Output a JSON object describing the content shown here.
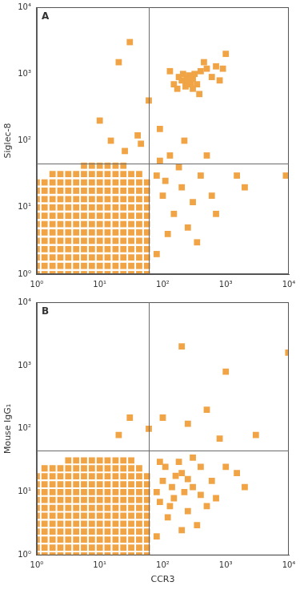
{
  "chart_data": [
    {
      "type": "scatter",
      "title": "A",
      "y_label": "Siglec-8",
      "color": "#f0a445",
      "marker": "square",
      "log": true,
      "grid": false,
      "xlim": [
        1,
        10000
      ],
      "ylim": [
        1,
        10000
      ],
      "xticks": [
        {
          "value": 1,
          "label": "10⁰"
        },
        {
          "value": 10,
          "label": "10¹"
        },
        {
          "value": 100,
          "label": "10²"
        },
        {
          "value": 1000,
          "label": "10³"
        },
        {
          "value": 10000,
          "label": "10⁴"
        }
      ],
      "yticks": [
        {
          "value": 1,
          "label": "10⁰"
        },
        {
          "value": 10,
          "label": "10¹"
        },
        {
          "value": 100,
          "label": "10²"
        },
        {
          "value": 1000,
          "label": "10³"
        },
        {
          "value": 10000,
          "label": "10⁴"
        }
      ],
      "quadrant": {
        "x": 60,
        "y": 45
      },
      "x": [
        5.62,
        7.5,
        10,
        13.3,
        17.8,
        23.7,
        1.78,
        2.37,
        3.16,
        4.22,
        5.62,
        7.5,
        10,
        13.3,
        17.8,
        23.7,
        31.6,
        42.2,
        1,
        1.33,
        1.78,
        2.37,
        3.16,
        4.22,
        5.62,
        7.5,
        10,
        13.3,
        17.8,
        23.7,
        31.6,
        42.2,
        56.2,
        1,
        1.33,
        1.78,
        2.37,
        3.16,
        4.22,
        5.62,
        7.5,
        10,
        13.3,
        17.8,
        23.7,
        31.6,
        42.2,
        56.2,
        1,
        1.33,
        1.78,
        2.37,
        3.16,
        4.22,
        5.62,
        7.5,
        10,
        13.3,
        17.8,
        23.7,
        31.6,
        42.2,
        56.2,
        1,
        1.33,
        1.78,
        2.37,
        3.16,
        4.22,
        5.62,
        7.5,
        10,
        13.3,
        17.8,
        23.7,
        31.6,
        42.2,
        56.2,
        1,
        1.33,
        1.78,
        2.37,
        3.16,
        4.22,
        5.62,
        7.5,
        10,
        13.3,
        17.8,
        23.7,
        31.6,
        42.2,
        56.2,
        1,
        1.33,
        1.78,
        2.37,
        3.16,
        4.22,
        5.62,
        7.5,
        10,
        13.3,
        17.8,
        23.7,
        31.6,
        42.2,
        56.2,
        1,
        1.33,
        1.78,
        2.37,
        3.16,
        4.22,
        5.62,
        7.5,
        10,
        13.3,
        17.8,
        23.7,
        31.6,
        42.2,
        56.2,
        1,
        1.33,
        1.78,
        2.37,
        3.16,
        4.22,
        5.62,
        7.5,
        10,
        13.3,
        17.8,
        23.7,
        31.6,
        42.2,
        56.2,
        1,
        1.33,
        1.78,
        2.37,
        3.16,
        4.22,
        5.62,
        7.5,
        10,
        13.3,
        17.8,
        23.7,
        31.6,
        42.2,
        56.2,
        1,
        1.33,
        1.78,
        2.37,
        3.16,
        4.22,
        5.62,
        7.5,
        10,
        13.3,
        17.8,
        23.7,
        31.6,
        42.2,
        56.2,
        1,
        1.33,
        1.78,
        2.37,
        3.16,
        4.22,
        5.62,
        7.5,
        10,
        13.3,
        17.8,
        23.7,
        31.6,
        42.2,
        56.2,
        1,
        1.33,
        1.78,
        2.37,
        3.16,
        4.22,
        5.62,
        7.5,
        10,
        13.3,
        17.8,
        23.7,
        31.6,
        42.2,
        56.2,
        200,
        250,
        300,
        230,
        280,
        180,
        320,
        260,
        350,
        210,
        400,
        150,
        300,
        240,
        500,
        700,
        900,
        600,
        450,
        1000,
        130,
        170,
        800,
        380,
        80,
        100,
        150,
        200,
        300,
        120,
        90,
        400,
        250,
        600,
        110,
        180,
        700,
        1500,
        350,
        130,
        220,
        90,
        500,
        2000,
        80,
        20,
        30,
        10,
        40,
        45,
        25,
        60,
        15,
        9000
      ],
      "values": [
        42.2,
        42.2,
        42.2,
        42.2,
        42.2,
        42.2,
        31.6,
        31.6,
        31.6,
        31.6,
        31.6,
        31.6,
        31.6,
        31.6,
        31.6,
        31.6,
        31.6,
        31.6,
        23.7,
        23.7,
        23.7,
        23.7,
        23.7,
        23.7,
        23.7,
        23.7,
        23.7,
        23.7,
        23.7,
        23.7,
        23.7,
        23.7,
        23.7,
        17.8,
        17.8,
        17.8,
        17.8,
        17.8,
        17.8,
        17.8,
        17.8,
        17.8,
        17.8,
        17.8,
        17.8,
        17.8,
        17.8,
        17.8,
        13.3,
        13.3,
        13.3,
        13.3,
        13.3,
        13.3,
        13.3,
        13.3,
        13.3,
        13.3,
        13.3,
        13.3,
        13.3,
        13.3,
        13.3,
        10,
        10,
        10,
        10,
        10,
        10,
        10,
        10,
        10,
        10,
        10,
        10,
        10,
        10,
        10,
        7.5,
        7.5,
        7.5,
        7.5,
        7.5,
        7.5,
        7.5,
        7.5,
        7.5,
        7.5,
        7.5,
        7.5,
        7.5,
        7.5,
        7.5,
        5.62,
        5.62,
        5.62,
        5.62,
        5.62,
        5.62,
        5.62,
        5.62,
        5.62,
        5.62,
        5.62,
        5.62,
        5.62,
        5.62,
        5.62,
        4.22,
        4.22,
        4.22,
        4.22,
        4.22,
        4.22,
        4.22,
        4.22,
        4.22,
        4.22,
        4.22,
        4.22,
        4.22,
        4.22,
        4.22,
        3.16,
        3.16,
        3.16,
        3.16,
        3.16,
        3.16,
        3.16,
        3.16,
        3.16,
        3.16,
        3.16,
        3.16,
        3.16,
        3.16,
        3.16,
        2.37,
        2.37,
        2.37,
        2.37,
        2.37,
        2.37,
        2.37,
        2.37,
        2.37,
        2.37,
        2.37,
        2.37,
        2.37,
        2.37,
        2.37,
        1.78,
        1.78,
        1.78,
        1.78,
        1.78,
        1.78,
        1.78,
        1.78,
        1.78,
        1.78,
        1.78,
        1.78,
        1.78,
        1.78,
        1.78,
        1.33,
        1.33,
        1.33,
        1.33,
        1.33,
        1.33,
        1.33,
        1.33,
        1.33,
        1.33,
        1.33,
        1.33,
        1.33,
        1.33,
        1.33,
        1,
        1,
        1,
        1,
        1,
        1,
        1,
        1,
        1,
        1,
        1,
        1,
        1,
        1,
        1,
        800,
        750,
        850,
        650,
        700,
        900,
        1000,
        950,
        700,
        1000,
        1100,
        700,
        600,
        850,
        1200,
        1300,
        1200,
        900,
        1500,
        2000,
        1100,
        600,
        800,
        500,
        30,
        15,
        8,
        20,
        12,
        4,
        50,
        30,
        5,
        15,
        25,
        40,
        8,
        30,
        3,
        60,
        100,
        150,
        60,
        20,
        2,
        1500,
        3000,
        200,
        120,
        90,
        70,
        400,
        100,
        30
      ]
    },
    {
      "type": "scatter",
      "title": "B",
      "x_label": "CCR3",
      "y_label": "Mouse IgG₁",
      "color": "#f0a445",
      "marker": "square",
      "log": true,
      "grid": false,
      "xlim": [
        1,
        10000
      ],
      "ylim": [
        1,
        10000
      ],
      "xticks": [
        {
          "value": 1,
          "label": "10⁰"
        },
        {
          "value": 10,
          "label": "10¹"
        },
        {
          "value": 100,
          "label": "10²"
        },
        {
          "value": 1000,
          "label": "10³"
        },
        {
          "value": 10000,
          "label": "10⁴"
        }
      ],
      "yticks": [
        {
          "value": 1,
          "label": "10⁰"
        },
        {
          "value": 10,
          "label": "10¹"
        },
        {
          "value": 100,
          "label": "10²"
        },
        {
          "value": 1000,
          "label": "10³"
        },
        {
          "value": 10000,
          "label": "10⁴"
        }
      ],
      "quadrant": {
        "x": 60,
        "y": 45
      },
      "x": [
        3.16,
        4.22,
        5.62,
        7.5,
        10,
        13.3,
        17.8,
        23.7,
        31.6,
        1.33,
        1.78,
        2.37,
        3.16,
        4.22,
        5.62,
        7.5,
        10,
        13.3,
        17.8,
        23.7,
        31.6,
        42.2,
        1,
        1.33,
        1.78,
        2.37,
        3.16,
        4.22,
        5.62,
        7.5,
        10,
        13.3,
        17.8,
        23.7,
        31.6,
        42.2,
        56.2,
        1,
        1.33,
        1.78,
        2.37,
        3.16,
        4.22,
        5.62,
        7.5,
        10,
        13.3,
        17.8,
        23.7,
        31.6,
        42.2,
        56.2,
        1,
        1.33,
        1.78,
        2.37,
        3.16,
        4.22,
        5.62,
        7.5,
        10,
        13.3,
        17.8,
        23.7,
        31.6,
        42.2,
        56.2,
        1,
        1.33,
        1.78,
        2.37,
        3.16,
        4.22,
        5.62,
        7.5,
        10,
        13.3,
        17.8,
        23.7,
        31.6,
        42.2,
        56.2,
        1,
        1.33,
        1.78,
        2.37,
        3.16,
        4.22,
        5.62,
        7.5,
        10,
        13.3,
        17.8,
        23.7,
        31.6,
        42.2,
        56.2,
        1,
        1.33,
        1.78,
        2.37,
        3.16,
        4.22,
        5.62,
        7.5,
        10,
        13.3,
        17.8,
        23.7,
        31.6,
        42.2,
        56.2,
        1,
        1.33,
        1.78,
        2.37,
        3.16,
        4.22,
        5.62,
        7.5,
        10,
        13.3,
        17.8,
        23.7,
        31.6,
        42.2,
        56.2,
        1,
        1.33,
        1.78,
        2.37,
        3.16,
        4.22,
        5.62,
        7.5,
        10,
        13.3,
        17.8,
        23.7,
        31.6,
        42.2,
        56.2,
        1,
        1.33,
        1.78,
        2.37,
        3.16,
        4.22,
        5.62,
        7.5,
        10,
        13.3,
        17.8,
        23.7,
        31.6,
        42.2,
        56.2,
        1,
        1.33,
        1.78,
        2.37,
        3.16,
        4.22,
        5.62,
        7.5,
        10,
        13.3,
        17.8,
        23.7,
        31.6,
        42.2,
        56.2,
        1,
        1.33,
        1.78,
        2.37,
        3.16,
        4.22,
        5.62,
        7.5,
        10,
        13.3,
        17.8,
        23.7,
        31.6,
        42.2,
        56.2,
        80,
        100,
        150,
        200,
        300,
        120,
        90,
        400,
        250,
        600,
        110,
        180,
        700,
        1500,
        350,
        130,
        220,
        160,
        500,
        2000,
        80,
        300,
        200,
        90,
        140,
        250,
        400,
        1000,
        200,
        250,
        500,
        100,
        800,
        3000,
        1000,
        30,
        60,
        20,
        9800
      ],
      "values": [
        31.6,
        31.6,
        31.6,
        31.6,
        31.6,
        31.6,
        31.6,
        31.6,
        31.6,
        23.7,
        23.7,
        23.7,
        23.7,
        23.7,
        23.7,
        23.7,
        23.7,
        23.7,
        23.7,
        23.7,
        23.7,
        23.7,
        17.8,
        17.8,
        17.8,
        17.8,
        17.8,
        17.8,
        17.8,
        17.8,
        17.8,
        17.8,
        17.8,
        17.8,
        17.8,
        17.8,
        17.8,
        13.3,
        13.3,
        13.3,
        13.3,
        13.3,
        13.3,
        13.3,
        13.3,
        13.3,
        13.3,
        13.3,
        13.3,
        13.3,
        13.3,
        13.3,
        10,
        10,
        10,
        10,
        10,
        10,
        10,
        10,
        10,
        10,
        10,
        10,
        10,
        10,
        10,
        7.5,
        7.5,
        7.5,
        7.5,
        7.5,
        7.5,
        7.5,
        7.5,
        7.5,
        7.5,
        7.5,
        7.5,
        7.5,
        7.5,
        7.5,
        5.62,
        5.62,
        5.62,
        5.62,
        5.62,
        5.62,
        5.62,
        5.62,
        5.62,
        5.62,
        5.62,
        5.62,
        5.62,
        5.62,
        5.62,
        4.22,
        4.22,
        4.22,
        4.22,
        4.22,
        4.22,
        4.22,
        4.22,
        4.22,
        4.22,
        4.22,
        4.22,
        4.22,
        4.22,
        4.22,
        3.16,
        3.16,
        3.16,
        3.16,
        3.16,
        3.16,
        3.16,
        3.16,
        3.16,
        3.16,
        3.16,
        3.16,
        3.16,
        3.16,
        3.16,
        2.37,
        2.37,
        2.37,
        2.37,
        2.37,
        2.37,
        2.37,
        2.37,
        2.37,
        2.37,
        2.37,
        2.37,
        2.37,
        2.37,
        2.37,
        1.78,
        1.78,
        1.78,
        1.78,
        1.78,
        1.78,
        1.78,
        1.78,
        1.78,
        1.78,
        1.78,
        1.78,
        1.78,
        1.78,
        1.78,
        1.33,
        1.33,
        1.33,
        1.33,
        1.33,
        1.33,
        1.33,
        1.33,
        1.33,
        1.33,
        1.33,
        1.33,
        1.33,
        1.33,
        1.33,
        1,
        1,
        1,
        1,
        1,
        1,
        1,
        1,
        1,
        1,
        1,
        1,
        1,
        1,
        1,
        10,
        15,
        8,
        20,
        12,
        4,
        30,
        25,
        5,
        15,
        25,
        30,
        8,
        20,
        3,
        6,
        10,
        18,
        6,
        12,
        2,
        35,
        2.5,
        7,
        12,
        16,
        9,
        25,
        2000,
        120,
        200,
        150,
        70,
        80,
        800,
        150,
        100,
        80,
        1600
      ]
    }
  ]
}
